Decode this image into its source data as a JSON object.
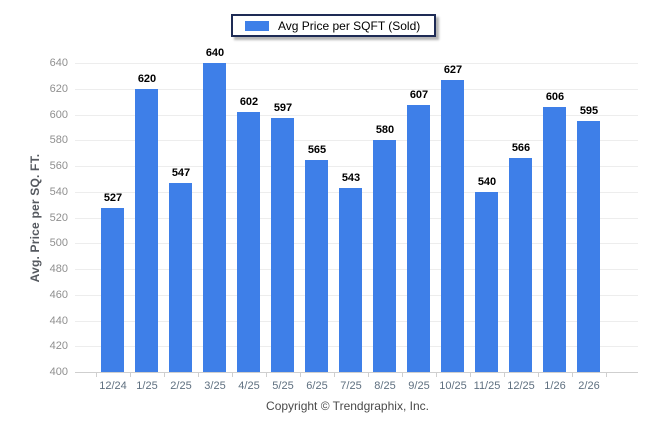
{
  "legend": {
    "items": [
      {
        "label": "Avg Price per SQFT (Sold)",
        "color": "#3E7FE8"
      }
    ]
  },
  "footer": {
    "text": "Copyright © Trendgraphix, Inc."
  },
  "chart_data": {
    "type": "bar",
    "title": "",
    "xlabel": "",
    "ylabel": "Avg. Price per SQ. FT.",
    "categories": [
      "12/24",
      "1/25",
      "2/25",
      "3/25",
      "4/25",
      "5/25",
      "6/25",
      "7/25",
      "8/25",
      "9/25",
      "10/25",
      "11/25",
      "12/25",
      "1/26",
      "2/26"
    ],
    "values": [
      527,
      620,
      547,
      640,
      602,
      597,
      565,
      543,
      580,
      607,
      627,
      540,
      566,
      606,
      595
    ],
    "series_name": "Avg Price per SQFT (Sold)",
    "ylim": [
      400,
      640
    ],
    "y_tick_step": 20,
    "y_tick_labels": [
      "400",
      "420",
      "440",
      "460",
      "480",
      "500",
      "520",
      "540",
      "560",
      "580",
      "600",
      "620",
      "640"
    ],
    "bar_color": "#3E7FE8",
    "grid": true,
    "legend_position": "top-center",
    "value_labels": true
  }
}
